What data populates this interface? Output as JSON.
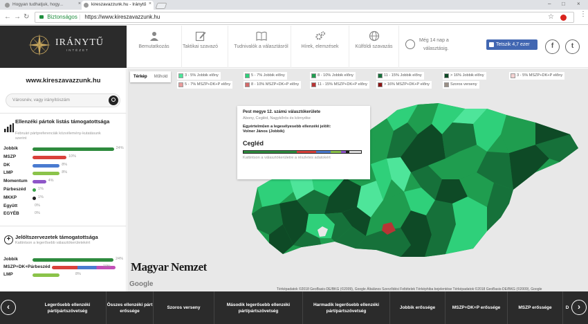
{
  "browser": {
    "tabs": [
      {
        "label": "Hogyan tudhatjuk, hogy..."
      },
      {
        "label": "kireszavazzunk.hu - Iránytű"
      }
    ],
    "secure_label": "Biztonságos",
    "url": "https://www.kireszavazzunk.hu"
  },
  "logo": {
    "text": "IRÁNYTŰ",
    "sub": "INTÉZET"
  },
  "nav": [
    {
      "label": "Bemutatkozás",
      "icon": "person-icon"
    },
    {
      "label": "Taktikai szavazó",
      "icon": "edit-icon"
    },
    {
      "label": "Tudnivalók a választásról",
      "icon": "book-icon"
    },
    {
      "label": "Hírek, elemzések",
      "icon": "gears-icon"
    },
    {
      "label": "Külföldi szavazás",
      "icon": "globe-icon"
    }
  ],
  "countdown": {
    "line1": "Még 14 nap a",
    "line2": "választásig."
  },
  "facebook": {
    "label": "Tetszik 4,7 ezer"
  },
  "sidebar": {
    "site": "www.kireszavazzunk.hu",
    "search_placeholder": "Városnév, vagy irányítószám",
    "lists": {
      "title": "Ellenzéki pártok listás támogatottsága",
      "subtitle": "Februári pártpreferenciák közvélemény-kutatásunk szerint",
      "rows": [
        {
          "name": "Jobbik",
          "value": "24%",
          "color": "#2e8b3e",
          "pct": 24
        },
        {
          "name": "MSZP",
          "value": "10%",
          "color": "#d9413b",
          "pct": 10
        },
        {
          "name": "DK",
          "value": "8%",
          "color": "#4a7bd0",
          "pct": 8
        },
        {
          "name": "LMP",
          "value": "8%",
          "color": "#8bc34a",
          "pct": 8
        },
        {
          "name": "Momentum",
          "value": "4%",
          "color": "#8e56c8",
          "pct": 4
        },
        {
          "name": "Párbeszéd",
          "value": "1%",
          "color": "#3aa34a",
          "pct": 1
        },
        {
          "name": "MKKP",
          "value": "1%",
          "color": "#222222",
          "pct": 1
        },
        {
          "name": "Együtt",
          "value": "0%",
          "color": "#cccccc",
          "pct": 0
        },
        {
          "name": "EGYÉB",
          "value": "0%",
          "color": "#cccccc",
          "pct": 0
        }
      ]
    },
    "candidates": {
      "title": "Jelöltszervezetek támogatottsága",
      "subtitle": "Kattintson a legerősebb választókerületekért",
      "rows": [
        {
          "name": "Jobbik",
          "value": "24%"
        },
        {
          "name": "MSZP+DK+Párbeszéd",
          "value": "19%"
        },
        {
          "name": "LMP",
          "value": "8%"
        }
      ]
    }
  },
  "map": {
    "type_on": "Térkép",
    "type_off": "Műhold",
    "legend": [
      {
        "label": "3 - 5% Jobbik előny",
        "color": "#4ee59a"
      },
      {
        "label": "5 - 7% Jobbik előny",
        "color": "#2fd07a"
      },
      {
        "label": "8 - 10% Jobbik előny",
        "color": "#1f9d4f"
      },
      {
        "label": "11 - 15% Jobbik előny",
        "color": "#16713a"
      },
      {
        "label": "> 16% Jobbik előny",
        "color": "#0e4a26"
      },
      {
        "label": "3 - 5% MSZP+DK+P előny",
        "color": "#f3d1d1"
      },
      {
        "label": "5 - 7% MSZP+DK+P előny",
        "color": "#e89c9c"
      },
      {
        "label": "8 - 10% MSZP+DK+P előny",
        "color": "#d46a6a"
      },
      {
        "label": "11 - 15% MSZP+DK+P előny",
        "color": "#b83535"
      },
      {
        "label": "> 16% MSZP+DK+P előny",
        "color": "#8b1414"
      },
      {
        "label": "Szoros verseny",
        "color": "#9a8f86"
      }
    ],
    "info": {
      "title": "Pest megye 12. számú választókerülete",
      "towns": "Abony, Cegléd, Nagykőrös és környéke",
      "line1": "Egyértelműen a legesélyesebb ellenzéki jelölt:",
      "line2": "Volner János (Jobbik)",
      "city": "Cegléd",
      "hint": "Kattintson a választókerületre a részletes adatokért"
    },
    "watermark": "Magyar Nemzet",
    "google": "Google",
    "footer": "Térképadatok ©2018 GeoBasis-DE/BKG (©2009), Google   Általános Szerződési Feltételek   Térképhiba bejelentése   Térképadatok ©2018 GeoBasis-DE/BKG (©2009), Google"
  },
  "bottom": [
    "Legerősebb ellenzéki párt/pártszövetség",
    "Összes ellenzéki párt erőssége",
    "Szoros verseny",
    "Második legerősebb ellenzéki párt/pártszövetség",
    "Harmadik legerősebb ellenzéki párt/pártszövetség",
    "Jobbik erőssége",
    "MSZP+DK+P erőssége",
    "MSZP erőssége",
    "D"
  ]
}
